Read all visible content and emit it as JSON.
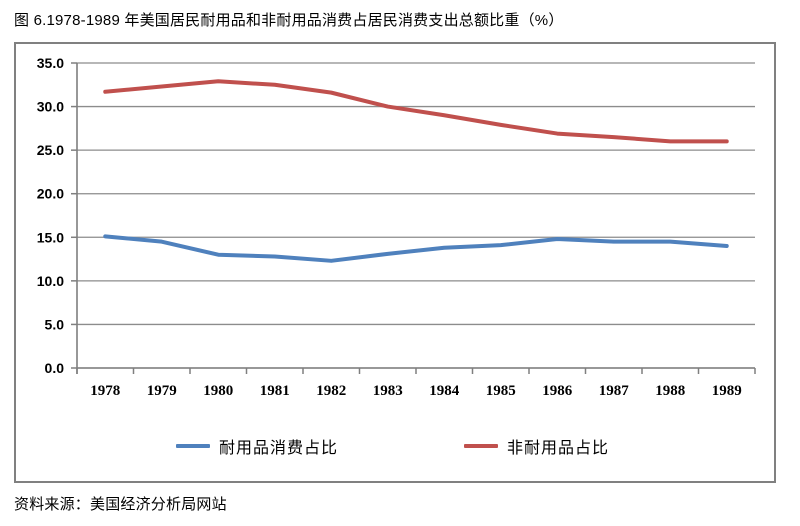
{
  "page": {
    "title": "图 6.1978-1989 年美国居民耐用品和非耐用品消费占居民消费支出总额比重（%）",
    "source_note": "资料来源：美国经济分析局网站"
  },
  "chart_data": {
    "type": "line",
    "title": "图 6.1978-1989 年美国居民耐用品和非耐用品消费占居民消费支出总额比重（%）",
    "categories": [
      "1978",
      "1979",
      "1980",
      "1981",
      "1982",
      "1983",
      "1984",
      "1985",
      "1986",
      "1987",
      "1988",
      "1989"
    ],
    "series": [
      {
        "name": "耐用品消费占比",
        "color": "#4F81BD",
        "values": [
          15.1,
          14.5,
          13.0,
          12.8,
          12.3,
          13.1,
          13.8,
          14.1,
          14.8,
          14.5,
          14.5,
          14.0
        ]
      },
      {
        "name": "非耐用品占比",
        "color": "#C0504D",
        "values": [
          31.7,
          32.3,
          32.9,
          32.5,
          31.6,
          30.0,
          29.0,
          27.9,
          26.9,
          26.5,
          26.0,
          26.0
        ]
      }
    ],
    "xlabel": "",
    "ylabel": "",
    "ylim": [
      0,
      35
    ],
    "ytick_step": 5,
    "ytick_labels": [
      "0.0",
      "5.0",
      "10.0",
      "15.0",
      "20.0",
      "25.0",
      "30.0",
      "35.0"
    ],
    "grid": true,
    "legend_position": "bottom-inside",
    "gridline_color": "#8C8C8C",
    "axis_color": "#7F7F7F",
    "line_width": 4
  }
}
